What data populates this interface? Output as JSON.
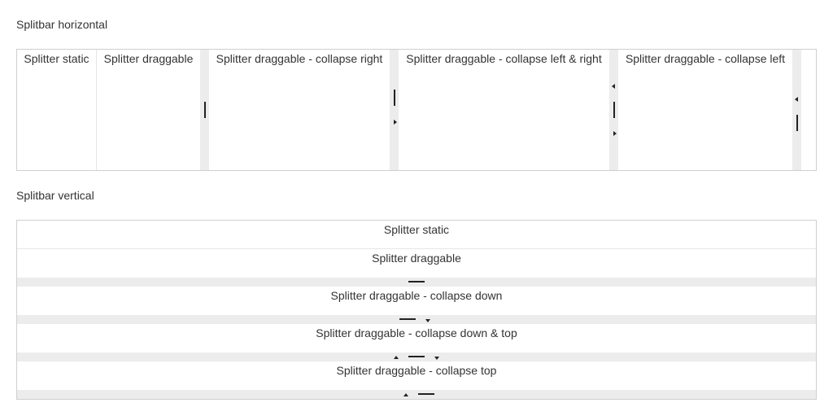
{
  "horizontal": {
    "title": "Splitbar horizontal",
    "panes": [
      "Splitter static",
      "Splitter draggable",
      "Splitter draggable - collapse right",
      "Splitter draggable - collapse left & right",
      "Splitter draggable - collapse left"
    ]
  },
  "vertical": {
    "title": "Splitbar vertical",
    "panes": [
      "Splitter static",
      "Splitter draggable",
      "Splitter draggable - collapse down",
      "Splitter draggable - collapse down & top",
      "Splitter draggable - collapse top"
    ]
  },
  "icons": {
    "grip": "grip-icon",
    "collapse_left": "triangle-left-icon",
    "collapse_right": "triangle-right-icon",
    "collapse_up": "triangle-up-icon",
    "collapse_down": "triangle-down-icon"
  },
  "colors": {
    "border": "#cfcfcf",
    "splitbar": "#ececec",
    "grip": "#222222",
    "text": "#333333"
  }
}
